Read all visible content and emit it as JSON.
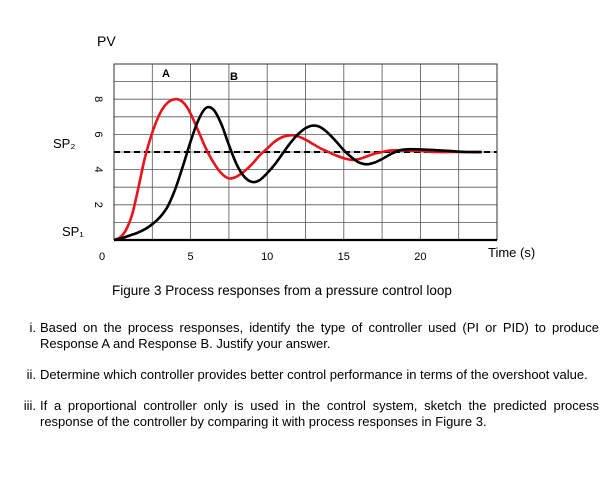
{
  "chart_data": {
    "type": "line",
    "ylabel": "PV",
    "xlabel": "Time (s)",
    "xlim": [
      0,
      25
    ],
    "ylim": [
      0,
      10
    ],
    "x_ticks": [
      "0",
      "5",
      "10",
      "15",
      "20"
    ],
    "y_ticks": [
      "2",
      "4",
      "6",
      "8"
    ],
    "setpoint_labels": {
      "high": "SP₂",
      "low": "SP₁"
    },
    "setpoint_value": 5.0,
    "grid": true,
    "series": [
      {
        "name": "A",
        "color": "#e8141a",
        "x": [
          0,
          0.4,
          0.8,
          1.2,
          1.6,
          2.0,
          2.5,
          3.0,
          3.5,
          4.0,
          4.4,
          4.8,
          5.2,
          5.6,
          6.0,
          6.5,
          7.0,
          7.5,
          8.0,
          8.5,
          9.0,
          9.5,
          10.0,
          10.5,
          11.0,
          11.5,
          12.0,
          12.5,
          13.0,
          13.5,
          14.0,
          14.5,
          15.0,
          15.5,
          16.0,
          16.5,
          17.0,
          17.5,
          18.0,
          19.0,
          20.0,
          21.0,
          22.0,
          23.0,
          24.0
        ],
        "y": [
          0,
          0.15,
          0.6,
          1.5,
          3.0,
          4.6,
          6.1,
          7.2,
          7.8,
          8.0,
          7.9,
          7.5,
          6.8,
          6.0,
          5.2,
          4.4,
          3.8,
          3.5,
          3.6,
          3.9,
          4.3,
          4.8,
          5.2,
          5.6,
          5.85,
          5.95,
          5.9,
          5.7,
          5.45,
          5.2,
          5.0,
          4.8,
          4.65,
          4.55,
          4.6,
          4.75,
          4.9,
          5.0,
          5.08,
          5.1,
          5.05,
          5.0,
          5.0,
          5.0,
          5.0
        ]
      },
      {
        "name": "B",
        "color": "#000000",
        "x": [
          0,
          0.5,
          1.0,
          1.5,
          2.0,
          2.5,
          3.0,
          3.5,
          4.0,
          4.5,
          5.0,
          5.5,
          6.0,
          6.5,
          7.0,
          7.5,
          8.0,
          8.5,
          9.0,
          9.5,
          10.0,
          10.5,
          11.0,
          11.5,
          12.0,
          12.5,
          13.0,
          13.5,
          14.0,
          14.5,
          15.0,
          15.5,
          16.0,
          16.5,
          17.0,
          17.5,
          18.0,
          18.5,
          19.0,
          20.0,
          21.0,
          22.0,
          23.0,
          24.0
        ],
        "y": [
          0,
          0.1,
          0.25,
          0.4,
          0.6,
          0.9,
          1.3,
          1.9,
          2.9,
          4.2,
          5.6,
          6.8,
          7.5,
          7.4,
          6.6,
          5.4,
          4.3,
          3.6,
          3.3,
          3.4,
          3.8,
          4.3,
          4.9,
          5.5,
          6.0,
          6.35,
          6.5,
          6.4,
          6.05,
          5.6,
          5.1,
          4.7,
          4.4,
          4.3,
          4.4,
          4.6,
          4.85,
          5.05,
          5.15,
          5.15,
          5.1,
          5.05,
          5.0,
          5.0
        ]
      }
    ],
    "annotations": [
      "A",
      "B"
    ]
  },
  "caption": "Figure 3 Process responses from a pressure control loop",
  "questions": [
    {
      "num": "i.",
      "text": "Based on the process responses, identify the type of controller used (PI or PID) to produce Response A and Response B. Justify your answer."
    },
    {
      "num": "ii.",
      "text": "Determine which controller provides better control performance in terms of the overshoot value."
    },
    {
      "num": "iii.",
      "text": "If a proportional controller only is used in the control system, sketch the predicted process response of the controller by comparing it with process responses in Figure 3."
    }
  ]
}
